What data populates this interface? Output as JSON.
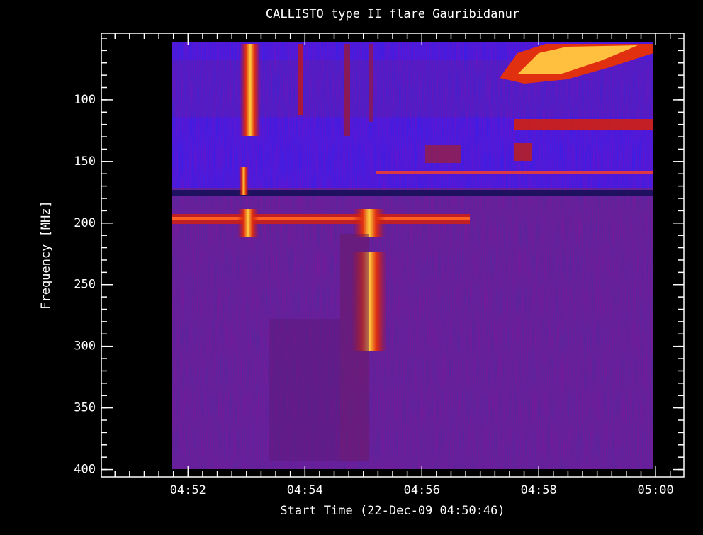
{
  "chart_data": {
    "type": "spectrogram",
    "title": "CALLISTO type II flare Gauribidanur",
    "xlabel": "Start Time (22-Dec-09 04:50:46)",
    "ylabel": "Frequency [MHz]",
    "xlim": [
      17431,
      18029
    ],
    "xticks": [
      {
        "value": 17520,
        "label": "04:52"
      },
      {
        "value": 17640,
        "label": "04:54"
      },
      {
        "value": 17760,
        "label": "04:56"
      },
      {
        "value": 17880,
        "label": "04:58"
      },
      {
        "value": 18000,
        "label": "05:00"
      }
    ],
    "ylim": [
      46,
      406
    ],
    "y_inverted": true,
    "yticks": [
      100,
      150,
      200,
      250,
      300,
      350,
      400
    ]
  }
}
